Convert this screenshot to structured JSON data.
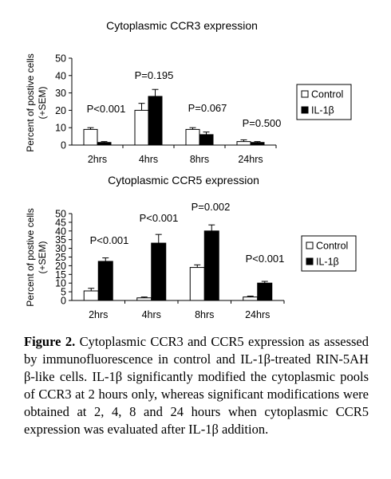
{
  "chart_data": [
    {
      "type": "bar",
      "title": "Cytoplasmic CCR3 expression",
      "ylabel": "Percent of positive cells (+SEM)",
      "ylabel_lines": [
        "Percent of postive cells",
        "(+SEM)"
      ],
      "xlabel": "",
      "categories": [
        "2hrs",
        "4hrs",
        "8hrs",
        "24hrs"
      ],
      "ylim": [
        0,
        50
      ],
      "yticks": [
        0,
        10,
        20,
        30,
        40,
        50
      ],
      "grid": false,
      "legend": "right",
      "series": [
        {
          "name": "Control",
          "color": "#ffffff",
          "values": [
            9,
            20,
            9,
            2
          ],
          "errors": [
            1,
            4,
            1,
            1
          ]
        },
        {
          "name": "IL-1β",
          "color": "#000000",
          "values": [
            1.5,
            28,
            6,
            1.5
          ],
          "errors": [
            0.5,
            4,
            1.5,
            0.5
          ]
        }
      ],
      "annotations": [
        "P<0.001",
        "P=0.195",
        "P=0.067",
        "P=0.500"
      ]
    },
    {
      "type": "bar",
      "title": "Cytoplasmic CCR5 expression",
      "ylabel": "Percent of positive cells (+SEM)",
      "ylabel_lines": [
        "Percent of postive cells",
        "(+SEM)"
      ],
      "xlabel": "",
      "categories": [
        "2hrs",
        "4hrs",
        "8hrs",
        "24hrs"
      ],
      "ylim": [
        0,
        50
      ],
      "yticks": [
        0,
        5,
        10,
        15,
        20,
        25,
        30,
        35,
        40,
        45,
        50
      ],
      "grid": false,
      "legend": "right",
      "series": [
        {
          "name": "Control",
          "color": "#ffffff",
          "values": [
            5.5,
            1.5,
            19,
            2
          ],
          "errors": [
            1.5,
            0.5,
            1.5,
            0.5
          ]
        },
        {
          "name": "IL-1β",
          "color": "#000000",
          "values": [
            22.5,
            33,
            40,
            10
          ],
          "errors": [
            2,
            5,
            3.5,
            1
          ]
        }
      ],
      "annotations": [
        "P<0.001",
        "P<0.001",
        "P=0.002",
        "P<0.001"
      ]
    }
  ],
  "caption": {
    "lead": "Figure 2.",
    "text": "Cytoplasmic CCR3 and CCR5 expression as assessed by immunofluorescence in control and IL-1β-treated RIN-5AH β-like cells. IL-1β significantly modified the cytoplasmic pools of CCR3 at 2 hours only, whereas significant modifications were obtained at 2, 4, 8 and 24 hours when cytoplasmic CCR5 expression was evaluated after IL-1β addition."
  }
}
